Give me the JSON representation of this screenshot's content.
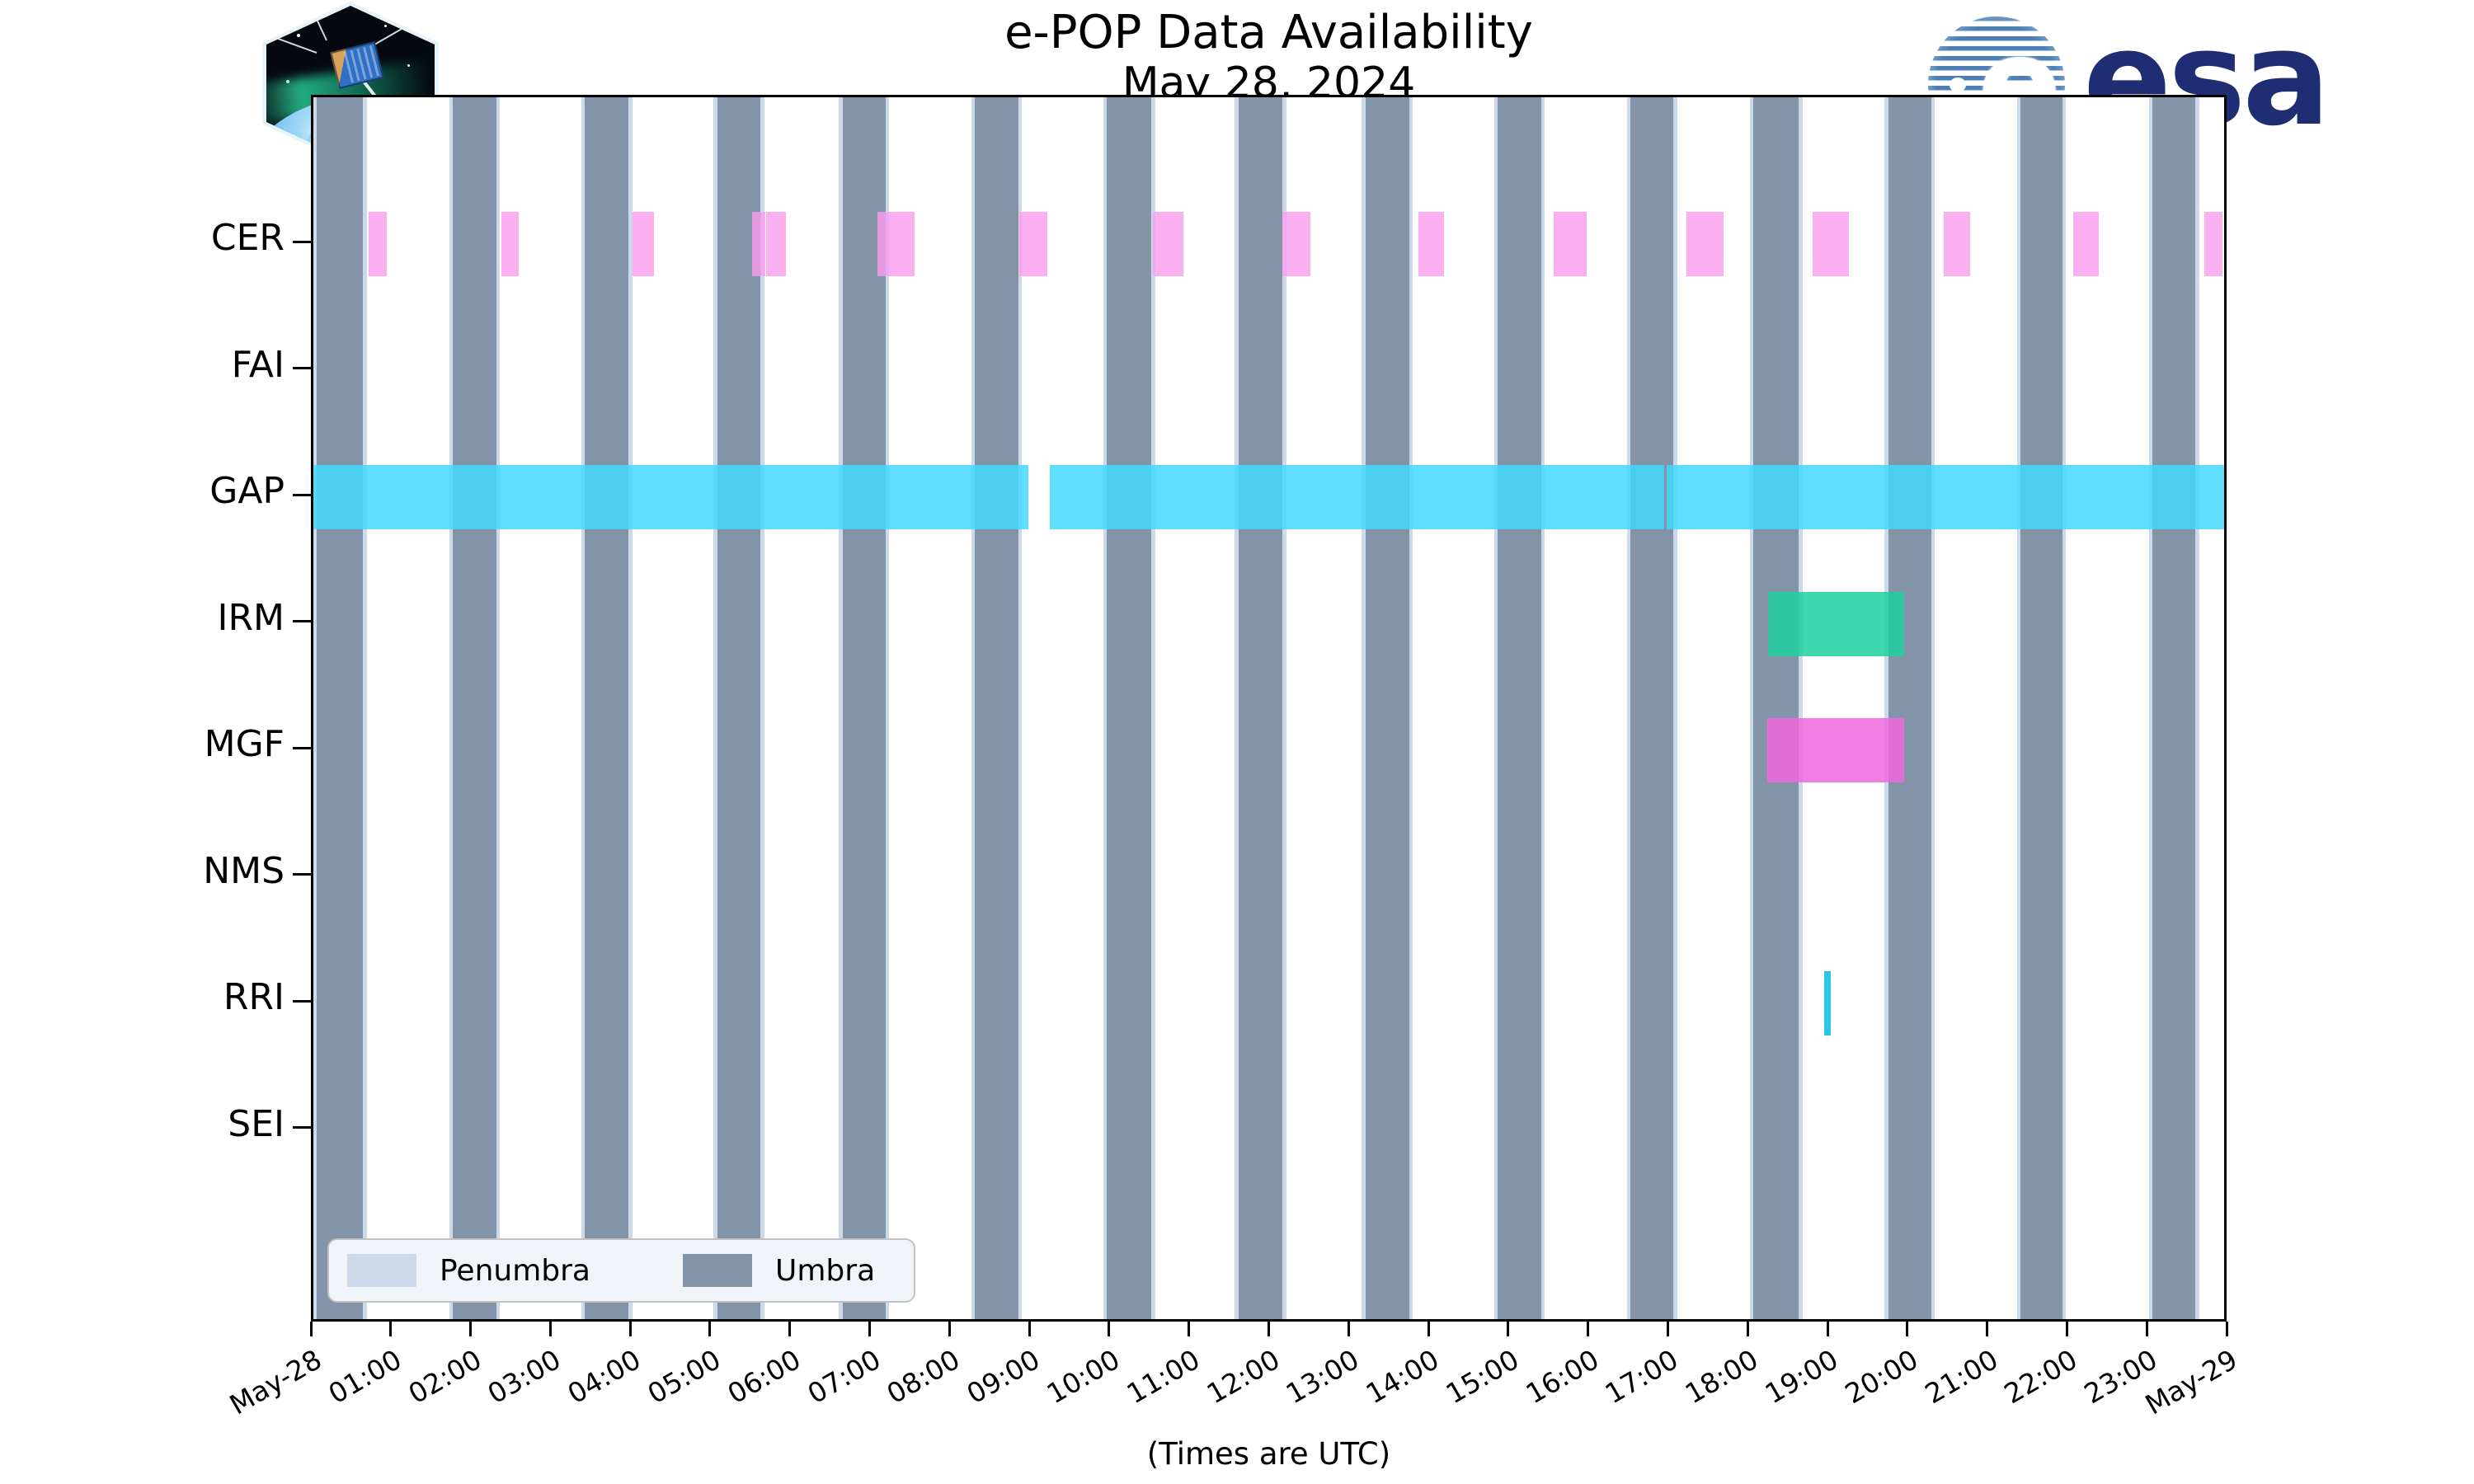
{
  "header": {
    "title_line1": "e-POP Data Availability",
    "title_line2": "May 28, 2024",
    "cassiope_label": "CASSIOPE",
    "esa_word": "esa",
    "esa_e": "e"
  },
  "axis": {
    "x_caption": "(Times are UTC)",
    "x_ticks": [
      {
        "hour": 0,
        "label": "May-28"
      },
      {
        "hour": 1,
        "label": "01:00"
      },
      {
        "hour": 2,
        "label": "02:00"
      },
      {
        "hour": 3,
        "label": "03:00"
      },
      {
        "hour": 4,
        "label": "04:00"
      },
      {
        "hour": 5,
        "label": "05:00"
      },
      {
        "hour": 6,
        "label": "06:00"
      },
      {
        "hour": 7,
        "label": "07:00"
      },
      {
        "hour": 8,
        "label": "08:00"
      },
      {
        "hour": 9,
        "label": "09:00"
      },
      {
        "hour": 10,
        "label": "10:00"
      },
      {
        "hour": 11,
        "label": "11:00"
      },
      {
        "hour": 12,
        "label": "12:00"
      },
      {
        "hour": 13,
        "label": "13:00"
      },
      {
        "hour": 14,
        "label": "14:00"
      },
      {
        "hour": 15,
        "label": "15:00"
      },
      {
        "hour": 16,
        "label": "16:00"
      },
      {
        "hour": 17,
        "label": "17:00"
      },
      {
        "hour": 18,
        "label": "18:00"
      },
      {
        "hour": 19,
        "label": "19:00"
      },
      {
        "hour": 20,
        "label": "20:00"
      },
      {
        "hour": 21,
        "label": "21:00"
      },
      {
        "hour": 22,
        "label": "22:00"
      },
      {
        "hour": 23,
        "label": "23:00"
      },
      {
        "hour": 24,
        "label": "May-29"
      }
    ]
  },
  "legend": [
    {
      "label": "Penumbra",
      "color": "#ccd9e8"
    },
    {
      "label": "Umbra",
      "color": "#8494a8"
    }
  ],
  "colors": {
    "umbra": "#8494a8",
    "penumbra": "#ccd9e8",
    "cer": "rgba(251,155,236,0.8)",
    "gap": "rgba(66,216,251,0.85)",
    "irm": "rgba(29,208,159,0.85)",
    "mgf": "rgba(239,105,222,0.85)",
    "rri": "#2fc6e4",
    "esa_navy": "#1f2e73",
    "esa_stripe": "#4d7fb5"
  },
  "chart_data": {
    "type": "availability-timeline (Gantt-style bar chart)",
    "title": "e-POP Data Availability",
    "subtitle": "May 28, 2024",
    "xlabel": "(Times are UTC)",
    "x_range_hours_utc": [
      0,
      24
    ],
    "grid": false,
    "legend_position": "lower-left",
    "instruments": [
      "CER",
      "FAI",
      "GAP",
      "IRM",
      "MGF",
      "NMS",
      "RRI",
      "SEI"
    ],
    "eclipse_umbra_hours": [
      [
        0.04,
        0.62
      ],
      [
        1.75,
        2.29
      ],
      [
        3.4,
        3.95
      ],
      [
        5.06,
        5.6
      ],
      [
        6.63,
        7.17
      ],
      [
        8.29,
        8.83
      ],
      [
        9.94,
        10.5
      ],
      [
        11.59,
        12.14
      ],
      [
        13.18,
        13.73
      ],
      [
        14.84,
        15.38
      ],
      [
        16.5,
        17.04
      ],
      [
        18.04,
        18.61
      ],
      [
        19.73,
        20.27
      ],
      [
        21.39,
        21.91
      ],
      [
        23.04,
        23.58
      ]
    ],
    "penumbra_flank_hours": 0.045,
    "availability_hours": {
      "CER": [
        [
          0.69,
          0.92
        ],
        [
          2.36,
          2.57
        ],
        [
          4.0,
          4.27
        ],
        [
          5.5,
          5.66
        ],
        [
          5.67,
          5.92
        ],
        [
          7.07,
          7.53
        ],
        [
          8.84,
          9.2
        ],
        [
          10.52,
          10.9
        ],
        [
          12.14,
          12.49
        ],
        [
          13.84,
          14.16
        ],
        [
          15.54,
          15.95
        ],
        [
          17.2,
          17.67
        ],
        [
          18.78,
          19.24
        ],
        [
          20.43,
          20.76
        ],
        [
          22.05,
          22.37
        ],
        [
          23.69,
          23.92
        ]
      ],
      "FAI": [],
      "GAP": [
        [
          0.0,
          8.96
        ],
        [
          9.23,
          16.92
        ],
        [
          16.95,
          24.0
        ]
      ],
      "IRM": [
        [
          18.22,
          19.93
        ]
      ],
      "MGF": [
        [
          18.21,
          19.93
        ]
      ],
      "NMS": [],
      "RRI": [
        [
          18.93,
          19.01
        ]
      ],
      "SEI": []
    }
  }
}
